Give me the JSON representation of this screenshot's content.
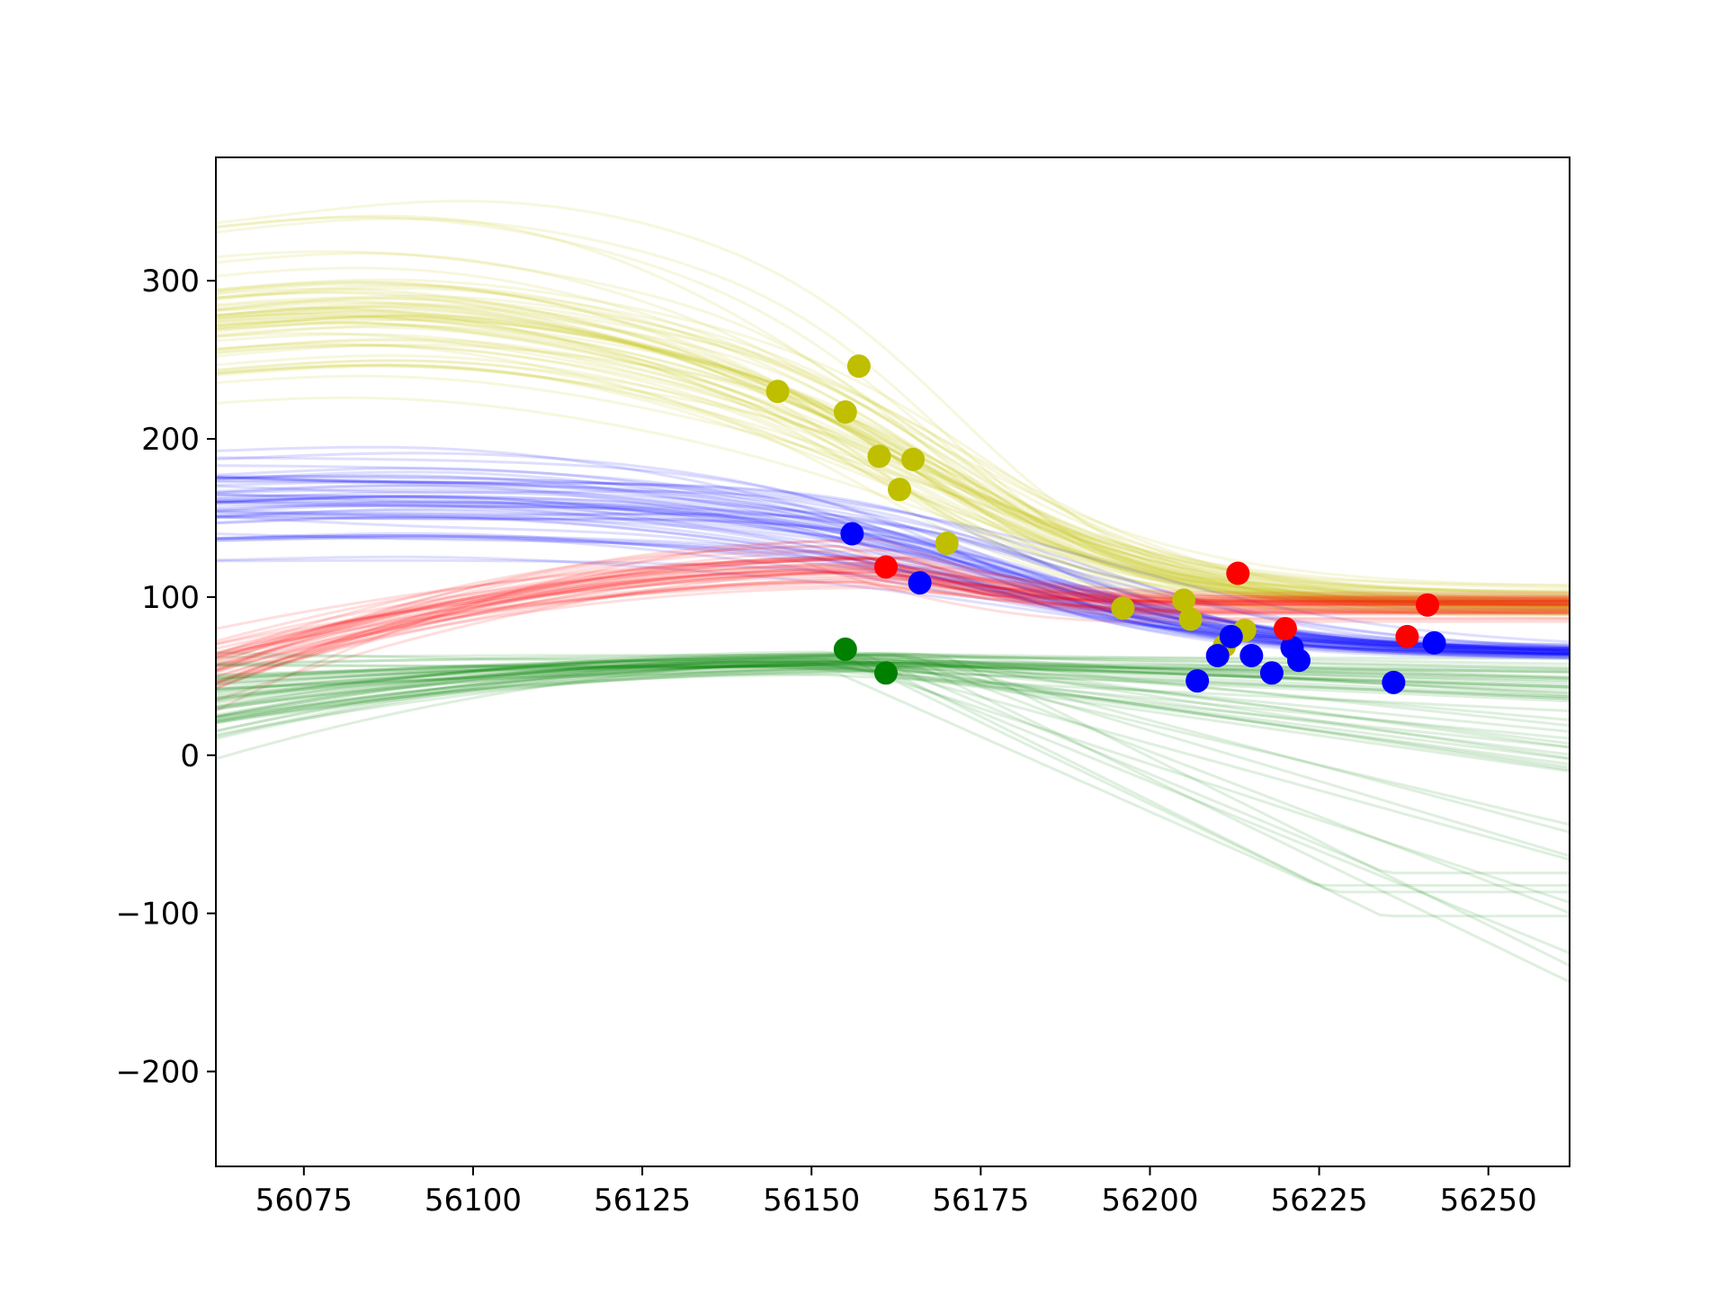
{
  "chart_data": {
    "type": "scatter",
    "title": "",
    "xlabel": "",
    "ylabel": "",
    "xlim": [
      56062,
      56262
    ],
    "ylim": [
      -260,
      378
    ],
    "grid": false,
    "x_ticks": [
      {
        "value": 56075,
        "label": "56075"
      },
      {
        "value": 56100,
        "label": "56100"
      },
      {
        "value": 56125,
        "label": "56125"
      },
      {
        "value": 56150,
        "label": "56150"
      },
      {
        "value": 56175,
        "label": "56175"
      },
      {
        "value": 56200,
        "label": "56200"
      },
      {
        "value": 56225,
        "label": "56225"
      },
      {
        "value": 56250,
        "label": "56250"
      }
    ],
    "y_ticks": [
      {
        "value": 300,
        "label": "300"
      },
      {
        "value": 200,
        "label": "200"
      },
      {
        "value": 100,
        "label": "100"
      },
      {
        "value": 0,
        "label": "0"
      },
      {
        "value": -100,
        "label": "−100"
      },
      {
        "value": -200,
        "label": "−200"
      }
    ],
    "series": [
      {
        "color": "#bfbf00",
        "points": [
          [
            56145,
            230
          ],
          [
            56155,
            217
          ],
          [
            56157,
            246
          ],
          [
            56160,
            189
          ],
          [
            56163,
            168
          ],
          [
            56165,
            187
          ],
          [
            56170,
            134
          ],
          [
            56196,
            93
          ],
          [
            56205,
            98
          ],
          [
            56206,
            86
          ],
          [
            56211,
            69
          ],
          [
            56214,
            79
          ]
        ]
      },
      {
        "color": "#0000ff",
        "points": [
          [
            56156,
            140
          ],
          [
            56166,
            109
          ],
          [
            56207,
            47
          ],
          [
            56210,
            63
          ],
          [
            56212,
            75
          ],
          [
            56215,
            63
          ],
          [
            56218,
            52
          ],
          [
            56221,
            68
          ],
          [
            56222,
            60
          ],
          [
            56236,
            46
          ],
          [
            56242,
            71
          ]
        ]
      },
      {
        "color": "#ff0000",
        "points": [
          [
            56161,
            119
          ],
          [
            56213,
            115
          ],
          [
            56220,
            80
          ],
          [
            56238,
            75
          ],
          [
            56241,
            95
          ]
        ]
      },
      {
        "color": "#008000",
        "points": [
          [
            56155,
            67
          ],
          [
            56161,
            52
          ]
        ]
      }
    ],
    "model_curves": [
      {
        "color": "#bfbf00",
        "count": 60,
        "start": [
          56062,
          258
        ],
        "peak_x": 56088,
        "plateau": 95
      },
      {
        "color": "#0000ff",
        "count": 55,
        "start": [
          56062,
          160
        ],
        "peak_x": 56100,
        "plateau": 64
      },
      {
        "color": "#ff0000",
        "count": 40,
        "start": [
          56062,
          60
        ],
        "peak_x": 56160,
        "plateau": 95
      },
      {
        "color": "#008000",
        "count": 55,
        "start": [
          56062,
          35
        ],
        "peak_x": 56160,
        "plateau": 40
      }
    ]
  }
}
